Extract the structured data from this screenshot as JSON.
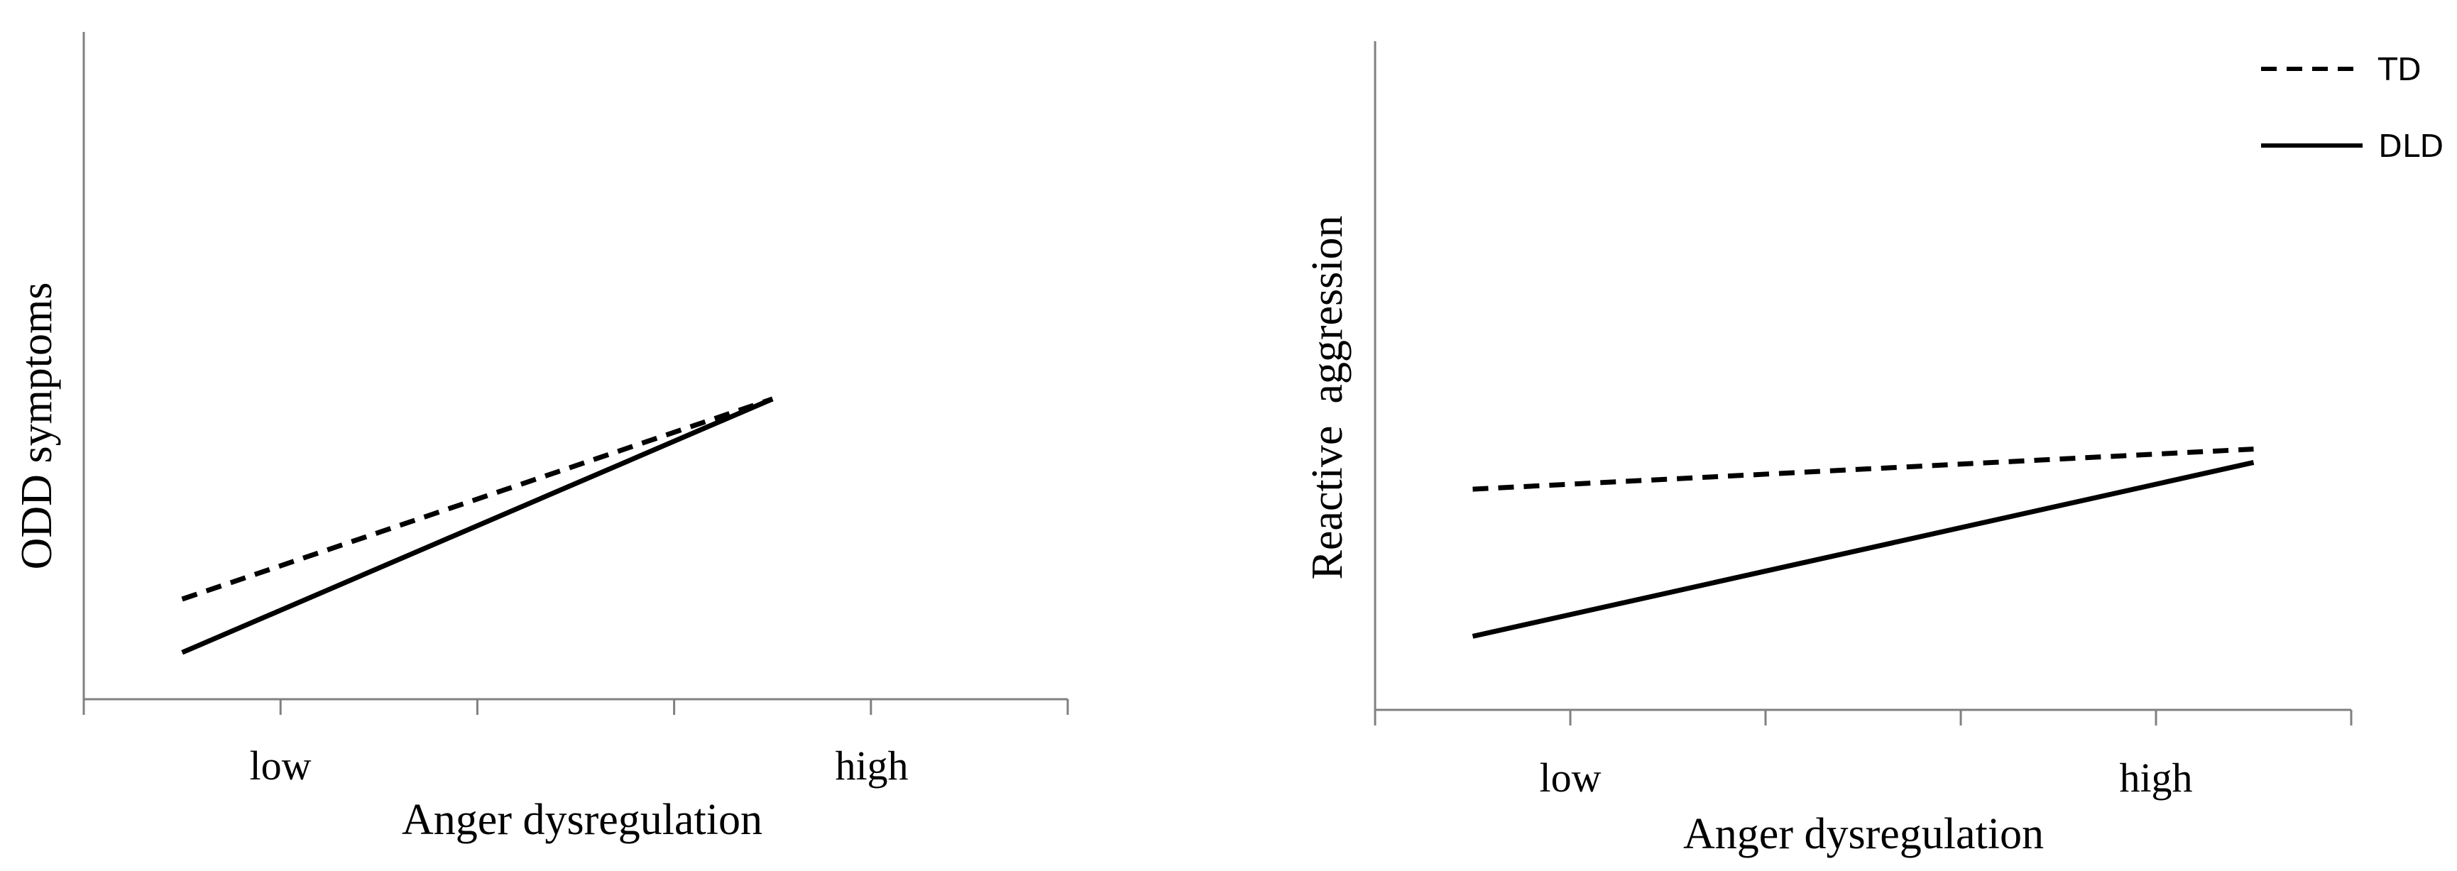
{
  "chart_data": [
    {
      "type": "line",
      "title": "",
      "xlabel": "Anger dysregulation",
      "ylabel": "ODD symptoms",
      "categories": [
        "low",
        "high"
      ],
      "grid": false,
      "series": [
        {
          "style": "dashed",
          "x": [
            0.5,
            3.5
          ],
          "y": [
            0.15,
            0.45
          ]
        },
        {
          "style": "solid",
          "x": [
            0.5,
            3.5
          ],
          "y": [
            0.07,
            0.45
          ]
        }
      ]
    },
    {
      "type": "line",
      "title": "",
      "xlabel": "Anger dysregulation",
      "ylabel": "Reactive  aggression",
      "categories": [
        "low",
        "high"
      ],
      "grid": false,
      "legend": {
        "position": "top-right"
      },
      "series": [
        {
          "name": "TD",
          "style": "dashed",
          "x": [
            0.5,
            4.5
          ],
          "y": [
            0.33,
            0.39
          ]
        },
        {
          "name": "DLD",
          "style": "solid",
          "x": [
            0.5,
            4.5
          ],
          "y": [
            0.11,
            0.37
          ]
        }
      ]
    }
  ]
}
